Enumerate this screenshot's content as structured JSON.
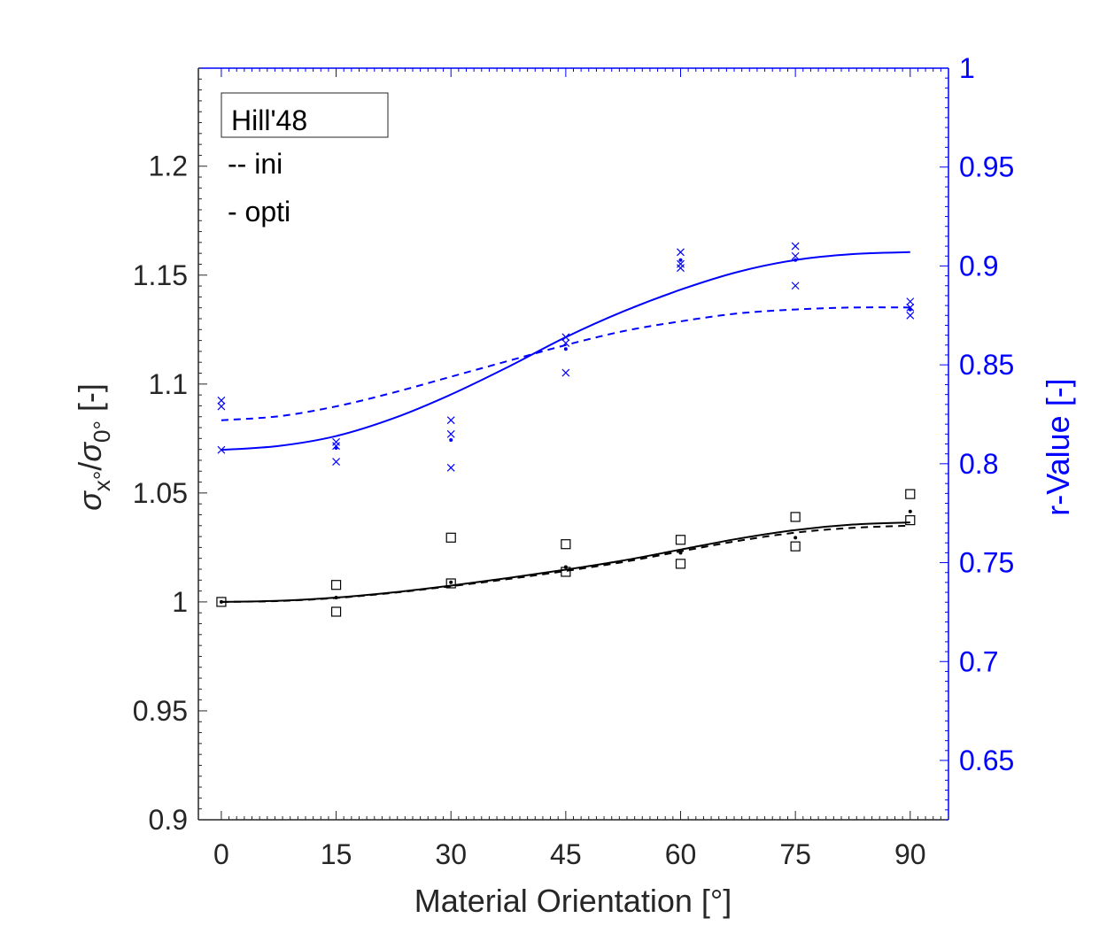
{
  "chart_data": {
    "type": "scatter",
    "xlabel": "Material Orientation [°]",
    "ylabel_left": "σx°/σ0° [-]",
    "ylabel_right": "r-Value [-]",
    "xlim": [
      -3,
      95
    ],
    "ylim_left": [
      0.9,
      1.245
    ],
    "ylim_right": [
      0.62,
      1.0
    ],
    "x_ticks": [
      0,
      15,
      30,
      45,
      60,
      75,
      90
    ],
    "x_tick_labels": [
      "0",
      "15",
      "30",
      "45",
      "60",
      "75",
      "90"
    ],
    "y_left_ticks": [
      0.9,
      0.95,
      1,
      1.05,
      1.1,
      1.15,
      1.2
    ],
    "y_left_tick_labels": [
      "0.9",
      "0.95",
      "1",
      "1.05",
      "1.1",
      "1.15",
      "1.2"
    ],
    "y_right_ticks": [
      0.65,
      0.7,
      0.75,
      0.8,
      0.85,
      0.9,
      0.95,
      1.0
    ],
    "y_right_tick_labels": [
      "0.65",
      "0.7",
      "0.75",
      "0.8",
      "0.85",
      "0.9",
      "0.95",
      "1"
    ],
    "grid": false,
    "legend": {
      "position": "top-left",
      "title": "Hill'48",
      "entries": [
        "-- ini",
        "- opti"
      ]
    },
    "colors": {
      "stress": "#000000",
      "rvalue": "#0000ff",
      "axis_left": "#262626",
      "axis_right": "#0000ff"
    },
    "series": [
      {
        "axis": "left",
        "style": "solid",
        "color": "#000000",
        "x": [
          0,
          7.5,
          15,
          22.5,
          30,
          37.5,
          45,
          52.5,
          60,
          67.5,
          75,
          82.5,
          90
        ],
        "y": [
          1.0,
          1.0005,
          1.002,
          1.0044,
          1.0075,
          1.011,
          1.0148,
          1.019,
          1.024,
          1.029,
          1.033,
          1.0355,
          1.0365
        ]
      },
      {
        "axis": "left",
        "style": "dashed",
        "color": "#000000",
        "x": [
          0,
          7.5,
          15,
          22.5,
          30,
          37.5,
          45,
          52.5,
          60,
          67.5,
          75,
          82.5,
          90
        ],
        "y": [
          1.0,
          1.0004,
          1.0018,
          1.0042,
          1.0072,
          1.0105,
          1.0142,
          1.0183,
          1.0232,
          1.028,
          1.0318,
          1.034,
          1.035
        ]
      },
      {
        "axis": "left",
        "style": "markers",
        "marker": "square",
        "color": "#000000",
        "x": [
          0,
          15,
          15,
          30,
          30,
          45,
          45,
          60,
          60,
          75,
          75,
          90,
          90
        ],
        "y": [
          1.0,
          1.0078,
          0.9955,
          1.0295,
          1.0085,
          1.0265,
          1.0138,
          1.0285,
          1.0175,
          1.039,
          1.0255,
          1.0495,
          1.0375
        ]
      },
      {
        "axis": "left",
        "style": "markers",
        "marker": "dot",
        "color": "#000000",
        "x": [
          0,
          15,
          30,
          45,
          60,
          75,
          90
        ],
        "y": [
          1.0,
          1.002,
          1.009,
          1.016,
          1.0225,
          1.0295,
          1.0415
        ]
      },
      {
        "axis": "right",
        "style": "solid",
        "color": "#0000ff",
        "x": [
          0,
          7.5,
          15,
          22.5,
          30,
          37.5,
          45,
          52.5,
          60,
          67.5,
          75,
          82.5,
          90
        ],
        "y": [
          0.807,
          0.809,
          0.814,
          0.823,
          0.835,
          0.849,
          0.864,
          0.877,
          0.888,
          0.897,
          0.903,
          0.906,
          0.907
        ]
      },
      {
        "axis": "right",
        "style": "dashed",
        "color": "#0000ff",
        "x": [
          0,
          7.5,
          15,
          22.5,
          30,
          37.5,
          45,
          52.5,
          60,
          67.5,
          75,
          82.5,
          90
        ],
        "y": [
          0.822,
          0.824,
          0.829,
          0.836,
          0.844,
          0.852,
          0.86,
          0.867,
          0.872,
          0.876,
          0.878,
          0.879,
          0.879
        ]
      },
      {
        "axis": "right",
        "style": "markers",
        "marker": "x",
        "color": "#0000ff",
        "x": [
          0,
          0,
          0,
          15,
          15,
          15,
          30,
          30,
          30,
          45,
          45,
          45,
          60,
          60,
          60,
          75,
          75,
          75,
          90,
          90,
          90
        ],
        "y": [
          0.832,
          0.829,
          0.807,
          0.811,
          0.809,
          0.801,
          0.822,
          0.815,
          0.798,
          0.864,
          0.861,
          0.846,
          0.907,
          0.901,
          0.899,
          0.91,
          0.905,
          0.89,
          0.882,
          0.879,
          0.875
        ]
      },
      {
        "axis": "right",
        "style": "markers",
        "marker": "dot",
        "color": "#0000ff",
        "x": [
          15,
          30,
          45,
          60,
          75,
          90
        ],
        "y": [
          0.808,
          0.812,
          0.858,
          0.903,
          0.903,
          0.878
        ]
      }
    ]
  }
}
